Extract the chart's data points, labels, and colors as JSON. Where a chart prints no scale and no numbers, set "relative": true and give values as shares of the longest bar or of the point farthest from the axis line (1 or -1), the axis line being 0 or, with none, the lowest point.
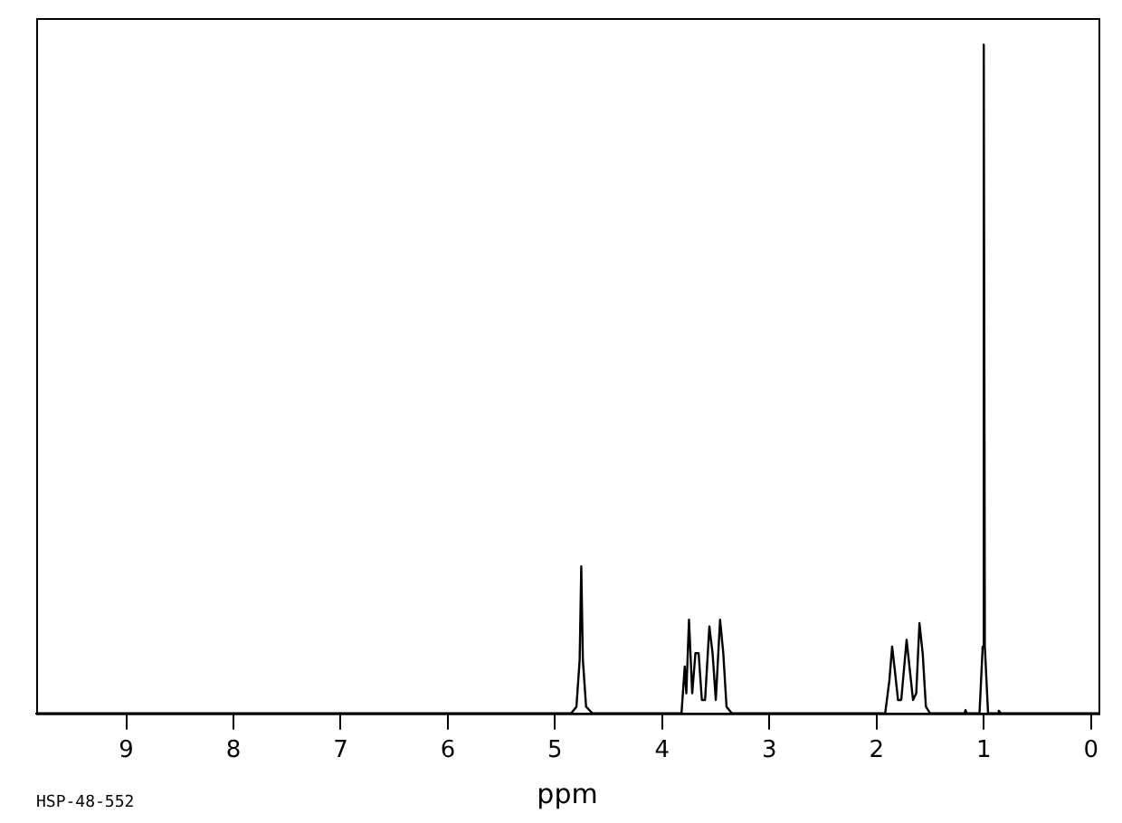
{
  "chart_data": {
    "type": "line",
    "relative": true,
    "xlabel": "ppm",
    "annotations": [
      "HSP-48-552"
    ],
    "marker": "none",
    "grid": false,
    "legend": false,
    "tick_labels": "x",
    "xlim": [
      9.84,
      -0.07
    ],
    "xticks": [
      9,
      8,
      7,
      6,
      5,
      4,
      3,
      2,
      1,
      0
    ],
    "series": [
      {
        "color": "#000000",
        "x": [
          9.84,
          4.85,
          4.8,
          4.77,
          4.755,
          4.74,
          4.71,
          4.65,
          3.82,
          3.79,
          3.775,
          3.75,
          3.72,
          3.69,
          3.66,
          3.63,
          3.6,
          3.56,
          3.53,
          3.5,
          3.46,
          3.43,
          3.4,
          3.35,
          1.92,
          1.88,
          1.855,
          1.83,
          1.8,
          1.77,
          1.72,
          1.69,
          1.66,
          1.63,
          1.6,
          1.57,
          1.54,
          1.5,
          1.18,
          1.17,
          1.16,
          1.04,
          1.01,
          1.0,
          0.99,
          0.96,
          0.87,
          0.86,
          0.84,
          -0.07
        ],
        "values": [
          0,
          0,
          0.01,
          0.08,
          0.22,
          0.08,
          0.01,
          0,
          0,
          0.07,
          0.03,
          0.14,
          0.03,
          0.09,
          0.09,
          0.02,
          0.02,
          0.13,
          0.09,
          0.02,
          0.14,
          0.09,
          0.01,
          0,
          0,
          0.05,
          0.1,
          0.065,
          0.02,
          0.02,
          0.11,
          0.065,
          0.02,
          0.03,
          0.135,
          0.09,
          0.01,
          0,
          0,
          0.005,
          0,
          0,
          0.1,
          1,
          0.1,
          0,
          0,
          0.004,
          0,
          0
        ]
      }
    ]
  }
}
